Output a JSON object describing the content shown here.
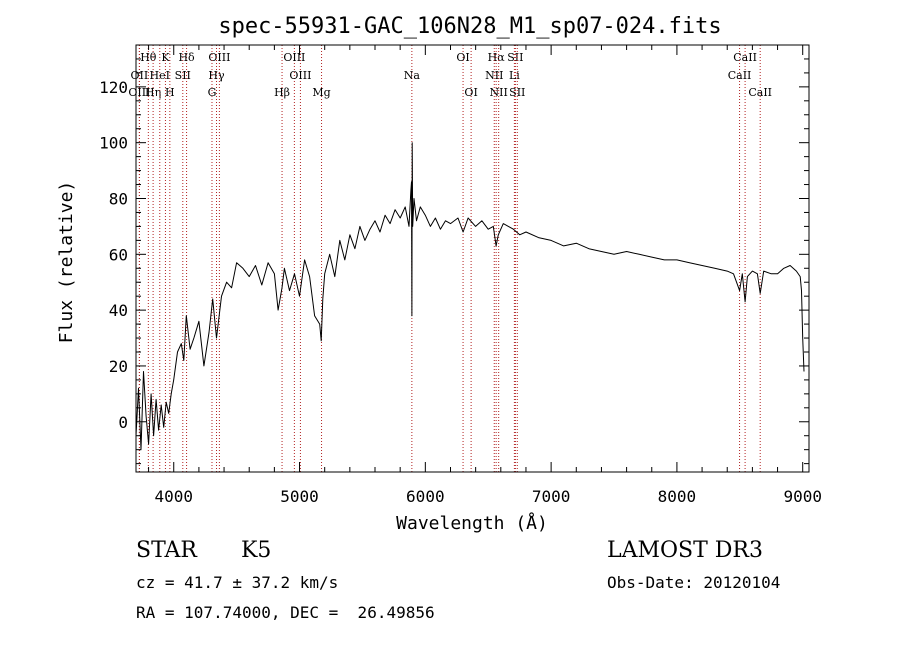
{
  "chart_data": {
    "type": "line",
    "title": "spec-55931-GAC_106N28_M1_sp07-024.fits",
    "xlabel": "Wavelength (Å)",
    "ylabel": "Flux (relative)",
    "xlim": [
      3700,
      9050
    ],
    "ylim": [
      -18,
      135
    ],
    "x_ticks": [
      4000,
      5000,
      6000,
      7000,
      8000,
      9000
    ],
    "x_tick_labels": [
      "4000",
      "5000",
      "6000",
      "7000",
      "8000",
      "9000"
    ],
    "y_ticks": [
      0,
      20,
      40,
      60,
      80,
      100,
      120
    ],
    "y_tick_labels": [
      "0",
      "20",
      "40",
      "60",
      "80",
      "100",
      "120"
    ],
    "x_minor_step": 200,
    "y_minor_step": 5,
    "series": [
      {
        "name": "spectrum",
        "color": "#000000",
        "x": [
          3700,
          3720,
          3740,
          3760,
          3780,
          3800,
          3820,
          3840,
          3860,
          3880,
          3900,
          3920,
          3940,
          3960,
          3980,
          4000,
          4030,
          4060,
          4080,
          4100,
          4130,
          4160,
          4200,
          4240,
          4280,
          4310,
          4340,
          4380,
          4420,
          4460,
          4500,
          4550,
          4600,
          4650,
          4700,
          4750,
          4800,
          4830,
          4861,
          4880,
          4920,
          4960,
          5000,
          5040,
          5080,
          5120,
          5160,
          5172,
          5185,
          5200,
          5240,
          5280,
          5320,
          5360,
          5400,
          5440,
          5480,
          5520,
          5560,
          5600,
          5640,
          5680,
          5720,
          5760,
          5800,
          5840,
          5870,
          5885,
          5890,
          5893,
          5896,
          5900,
          5910,
          5930,
          5960,
          6000,
          6040,
          6080,
          6120,
          6160,
          6200,
          6260,
          6300,
          6340,
          6400,
          6450,
          6500,
          6540,
          6563,
          6580,
          6620,
          6660,
          6700,
          6750,
          6800,
          6900,
          7000,
          7100,
          7200,
          7300,
          7400,
          7500,
          7600,
          7700,
          7800,
          7900,
          8000,
          8100,
          8200,
          8300,
          8400,
          8450,
          8498,
          8520,
          8542,
          8560,
          8600,
          8640,
          8662,
          8690,
          8750,
          8800,
          8850,
          8900,
          8950,
          8980,
          8990,
          9000,
          9010
        ],
        "y": [
          -5,
          12,
          -10,
          18,
          2,
          -8,
          10,
          -5,
          8,
          -3,
          6,
          -2,
          7,
          3,
          10,
          15,
          25,
          28,
          22,
          38,
          26,
          30,
          36,
          20,
          32,
          44,
          30,
          45,
          50,
          48,
          57,
          55,
          52,
          56,
          49,
          57,
          53,
          40,
          48,
          55,
          47,
          53,
          45,
          58,
          52,
          38,
          35,
          29,
          44,
          53,
          60,
          52,
          65,
          58,
          67,
          62,
          70,
          65,
          69,
          72,
          68,
          74,
          71,
          76,
          73,
          77,
          70,
          83,
          86,
          38,
          100,
          70,
          80,
          72,
          77,
          74,
          70,
          73,
          69,
          72,
          71,
          73,
          68,
          73,
          70,
          72,
          69,
          70,
          63,
          67,
          71,
          70,
          69,
          67,
          68,
          66,
          65,
          63,
          64,
          62,
          61,
          60,
          61,
          60,
          59,
          58,
          58,
          57,
          56,
          55,
          54,
          53,
          47,
          53,
          43,
          52,
          54,
          53,
          46,
          54,
          53,
          53,
          55,
          56,
          54,
          52,
          47,
          30,
          18
        ]
      }
    ],
    "line_markers": [
      {
        "label": "Hθ",
        "wavelength": 3798,
        "row": 0
      },
      {
        "label": "OII",
        "wavelength": 3727,
        "row": 1
      },
      {
        "label": "OIII",
        "wavelength": 3727,
        "row": 2
      },
      {
        "label": "Hη",
        "wavelength": 3836,
        "row": 2
      },
      {
        "label": "HeI",
        "wavelength": 3889,
        "row": 1
      },
      {
        "label": "K",
        "wavelength": 3934,
        "row": 0
      },
      {
        "label": "H",
        "wavelength": 3969,
        "row": 2
      },
      {
        "label": "SII",
        "wavelength": 4072,
        "row": 1
      },
      {
        "label": "Hδ",
        "wavelength": 4102,
        "row": 0
      },
      {
        "label": "OIII",
        "wavelength": 4363,
        "row": 0
      },
      {
        "label": "Hγ",
        "wavelength": 4340,
        "row": 1
      },
      {
        "label": "G",
        "wavelength": 4304,
        "row": 2
      },
      {
        "label": "Hβ",
        "wavelength": 4861,
        "row": 2
      },
      {
        "label": "OIII",
        "wavelength": 4959,
        "row": 0
      },
      {
        "label": "OIII",
        "wavelength": 5007,
        "row": 1
      },
      {
        "label": "Mg",
        "wavelength": 5175,
        "row": 2
      },
      {
        "label": "Na",
        "wavelength": 5893,
        "row": 1
      },
      {
        "label": "OI",
        "wavelength": 6300,
        "row": 0
      },
      {
        "label": "OI",
        "wavelength": 6364,
        "row": 2
      },
      {
        "label": "Hα",
        "wavelength": 6563,
        "row": 0
      },
      {
        "label": "NII",
        "wavelength": 6548,
        "row": 1
      },
      {
        "label": "NII",
        "wavelength": 6583,
        "row": 2
      },
      {
        "label": "SII",
        "wavelength": 6716,
        "row": 0
      },
      {
        "label": "Li",
        "wavelength": 6708,
        "row": 1
      },
      {
        "label": "SII",
        "wavelength": 6731,
        "row": 2
      },
      {
        "label": "CaII",
        "wavelength": 8542,
        "row": 0
      },
      {
        "label": "CaII",
        "wavelength": 8498,
        "row": 1
      },
      {
        "label": "CaII",
        "wavelength": 8662,
        "row": 2
      }
    ],
    "marker_color": "#b22222"
  },
  "footer": {
    "object_class": "STAR",
    "subclass": "K5",
    "survey": "LAMOST DR3",
    "redshift_line": "cz = 41.7 ± 37.2 km/s",
    "obs_date_line": "Obs-Date: 20120104",
    "coords_line": "RA = 107.74000, DEC =  26.49856"
  }
}
